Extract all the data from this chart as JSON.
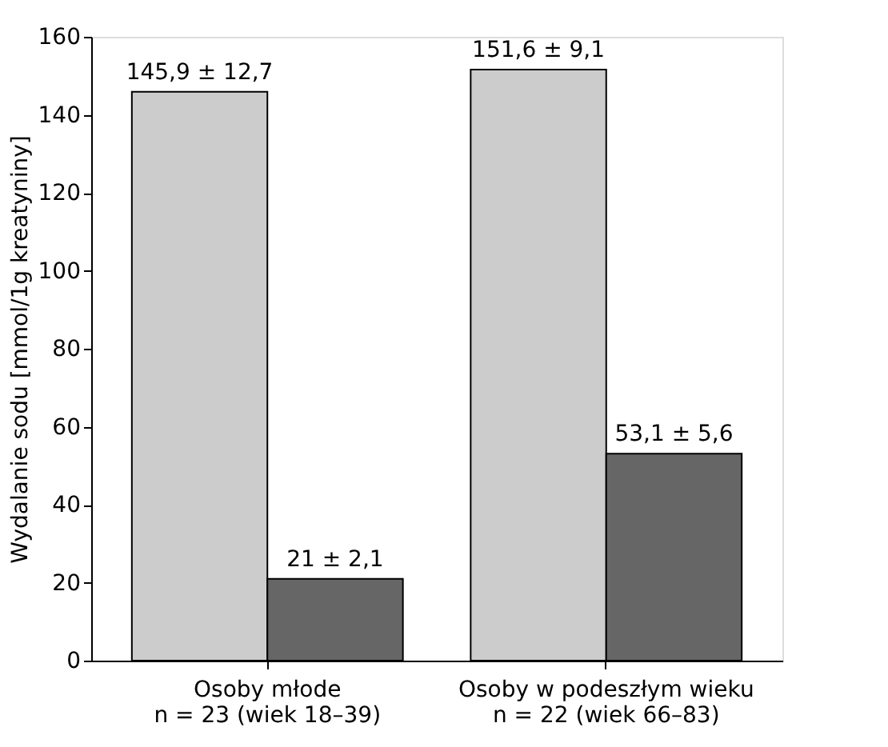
{
  "chart_data": {
    "type": "bar",
    "ylabel": "Wydalanie sodu [mmol/1g kreatyniny]",
    "categories": [
      "Osoby  młode\nn = 23 (wiek 18–39)",
      "Osoby w podeszłym wieku\nn = 22 (wiek 66–83)"
    ],
    "series": [
      {
        "color": "#cccccc",
        "values": [
          145.9,
          151.6
        ],
        "value_labels": [
          "145,9 ± 12,7",
          "151,6 ± 9,1"
        ]
      },
      {
        "color": "#666666",
        "values": [
          21,
          53.1
        ],
        "value_labels": [
          "21 ± 2,1",
          "53,1 ± 5,6"
        ]
      }
    ],
    "ylim": [
      0,
      160
    ],
    "yticks": [
      0,
      20,
      40,
      60,
      80,
      100,
      120,
      140,
      160
    ],
    "grid": false,
    "legend": false
  }
}
